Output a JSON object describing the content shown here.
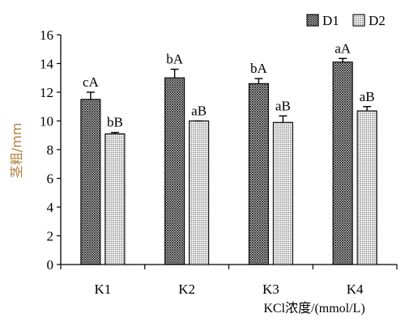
{
  "chart_data": {
    "type": "bar",
    "categories": [
      "K1",
      "K2",
      "K3",
      "K4"
    ],
    "series": [
      {
        "name": "D1",
        "values": [
          11.5,
          13.0,
          12.6,
          14.1
        ],
        "errors": [
          0.5,
          0.6,
          0.35,
          0.25
        ],
        "labels": [
          "cA",
          "bA",
          "bA",
          "aA"
        ],
        "pattern": "crosshatch"
      },
      {
        "name": "D2",
        "values": [
          9.1,
          10.0,
          9.9,
          10.7
        ],
        "errors": [
          0.1,
          0.0,
          0.45,
          0.3
        ],
        "labels": [
          "bB",
          "aB",
          "aB",
          "aB"
        ],
        "pattern": "dots"
      }
    ],
    "ylabel": "茎粗/mm",
    "xlabel": "KCl浓度/(mmol/L)",
    "ylim": [
      0,
      16
    ],
    "yticks": [
      0,
      2,
      4,
      6,
      8,
      10,
      12,
      14,
      16
    ],
    "grid": false,
    "legend": "top-right"
  }
}
